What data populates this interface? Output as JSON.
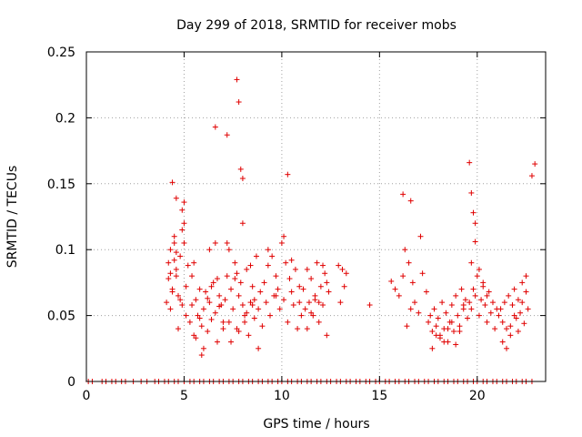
{
  "chart_data": {
    "type": "scatter",
    "title": "Day 299 of 2018, SRMTID for receiver mobs",
    "xlabel": "GPS time / hours",
    "ylabel": "SRMTID / TECUs",
    "xlim": [
      0,
      23.5
    ],
    "ylim": [
      0,
      0.25
    ],
    "xticks": [
      0,
      5,
      10,
      15,
      20
    ],
    "xtick_labels": [
      "0",
      "5",
      "10",
      "15",
      "20"
    ],
    "yticks": [
      0,
      0.05,
      0.1,
      0.15,
      0.2,
      0.25
    ],
    "ytick_labels": [
      "0",
      "0.05",
      "0.1",
      "0.15",
      "0.2",
      "0.25"
    ],
    "grid": true,
    "marker": "+",
    "series": [
      {
        "name": "SRMTID",
        "color": "#e00000",
        "x": [
          0.1,
          0.3,
          0.8,
          1.0,
          1.3,
          1.5,
          1.8,
          2.0,
          2.4,
          2.8,
          3.1,
          3.5,
          3.7,
          4.0,
          4.2,
          4.5,
          4.7,
          5.0,
          5.3,
          5.5,
          5.8,
          6.0,
          6.3,
          6.5,
          6.8,
          7.0,
          7.3,
          7.5,
          7.8,
          8.0,
          8.3,
          8.5,
          8.8,
          9.0,
          9.3,
          9.5,
          9.8,
          10.0,
          10.3,
          10.5,
          10.8,
          11.0,
          11.3,
          11.5,
          11.8,
          12.0,
          12.3,
          12.5,
          12.8,
          13.0,
          13.3,
          13.5,
          13.8,
          14.0,
          14.3,
          14.5,
          14.8,
          15.0,
          15.3,
          15.5,
          15.8,
          16.0,
          16.3,
          16.5,
          16.8,
          17.0,
          17.3,
          17.5,
          17.8,
          18.0,
          18.3,
          18.5,
          18.8,
          19.0,
          19.3,
          19.5,
          19.8,
          20.0,
          20.3,
          20.5,
          20.8,
          21.0,
          21.3,
          21.5,
          21.8,
          22.0,
          22.3,
          22.5,
          22.8,
          4.1,
          4.2,
          4.3,
          4.4,
          4.5,
          4.6,
          4.7,
          4.8,
          4.9,
          5.0,
          5.1,
          5.2,
          4.3,
          4.4,
          4.6,
          4.8,
          5.0,
          4.2,
          4.5,
          4.7,
          4.9,
          5.1,
          4.3,
          4.6,
          4.9,
          5.3,
          5.4,
          5.5,
          5.6,
          5.7,
          5.8,
          5.9,
          6.0,
          6.1,
          6.2,
          6.3,
          6.4,
          6.5,
          6.6,
          6.7,
          6.8,
          6.9,
          7.0,
          5.4,
          5.6,
          5.8,
          6.0,
          6.2,
          6.4,
          6.6,
          6.8,
          7.0,
          5.5,
          5.9,
          6.3,
          6.7,
          7.1,
          7.2,
          7.3,
          7.4,
          7.5,
          7.6,
          7.7,
          7.8,
          7.9,
          8.0,
          8.1,
          8.2,
          8.3,
          8.4,
          8.5,
          8.6,
          8.7,
          8.8,
          8.9,
          9.0,
          7.2,
          7.4,
          7.6,
          7.8,
          8.0,
          8.2,
          8.4,
          8.6,
          8.8,
          7.3,
          7.7,
          8.1,
          8.5,
          9.1,
          9.2,
          9.3,
          9.4,
          9.5,
          9.6,
          9.7,
          9.8,
          9.9,
          10.0,
          10.1,
          10.2,
          10.3,
          10.4,
          10.5,
          10.6,
          10.7,
          10.8,
          10.9,
          11.0,
          9.3,
          9.7,
          10.1,
          10.5,
          10.9,
          11.1,
          11.2,
          11.3,
          11.4,
          11.5,
          11.6,
          11.7,
          11.8,
          11.9,
          12.0,
          12.1,
          12.2,
          12.3,
          12.4,
          11.3,
          11.7,
          12.1,
          12.3,
          11.5,
          11.9,
          12.9,
          13.0,
          13.1,
          13.2,
          13.3,
          14.5,
          15.6,
          15.8,
          16.0,
          16.2,
          16.4,
          16.5,
          16.6,
          16.8,
          17.0,
          17.2,
          17.4,
          16.3,
          16.7,
          17.1,
          17.5,
          17.6,
          17.7,
          17.8,
          17.9,
          18.0,
          18.1,
          18.2,
          18.3,
          18.4,
          18.5,
          18.6,
          18.7,
          18.8,
          18.9,
          19.0,
          19.1,
          19.2,
          19.3,
          19.4,
          19.5,
          17.7,
          18.1,
          18.5,
          18.9,
          19.3,
          17.9,
          18.3,
          18.7,
          19.1,
          19.6,
          19.7,
          19.8,
          19.9,
          20.0,
          20.1,
          20.2,
          20.3,
          20.4,
          20.5,
          20.6,
          20.7,
          20.8,
          20.9,
          21.0,
          19.7,
          19.9,
          20.1,
          20.3,
          20.5,
          21.1,
          21.2,
          21.3,
          21.4,
          21.5,
          21.6,
          21.7,
          21.8,
          21.9,
          22.0,
          22.1,
          22.2,
          22.3,
          22.4,
          22.5,
          22.6,
          21.3,
          21.7,
          22.1,
          22.5,
          21.5,
          21.9,
          22.3,
          4.4,
          4.6,
          4.5,
          5.0,
          6.6,
          7.2,
          7.7,
          7.8,
          7.9,
          8.0,
          10.3,
          16.2,
          16.6,
          19.6,
          19.7,
          19.8,
          19.9,
          22.8,
          22.95
        ],
        "y": [
          0,
          0,
          0,
          0,
          0,
          0,
          0,
          0,
          0,
          0,
          0,
          0,
          0,
          0,
          0,
          0,
          0,
          0,
          0,
          0,
          0,
          0,
          0,
          0,
          0,
          0,
          0,
          0,
          0,
          0,
          0,
          0,
          0,
          0,
          0,
          0,
          0,
          0,
          0,
          0,
          0,
          0,
          0,
          0,
          0,
          0,
          0,
          0,
          0,
          0,
          0,
          0,
          0,
          0,
          0,
          0,
          0,
          0,
          0,
          0,
          0,
          0,
          0,
          0,
          0,
          0,
          0,
          0,
          0,
          0,
          0,
          0,
          0,
          0,
          0,
          0,
          0,
          0,
          0,
          0,
          0,
          0,
          0,
          0,
          0,
          0,
          0,
          0,
          0,
          0.06,
          0.09,
          0.1,
          0.07,
          0.11,
          0.08,
          0.065,
          0.095,
          0.058,
          0.105,
          0.072,
          0.088,
          0.055,
          0.068,
          0.085,
          0.062,
          0.12,
          0.078,
          0.092,
          0.04,
          0.115,
          0.05,
          0.082,
          0.098,
          0.13,
          0.045,
          0.058,
          0.035,
          0.062,
          0.05,
          0.07,
          0.042,
          0.055,
          0.068,
          0.038,
          0.06,
          0.047,
          0.075,
          0.052,
          0.03,
          0.065,
          0.058,
          0.04,
          0.08,
          0.033,
          0.048,
          0.025,
          0.063,
          0.072,
          0.105,
          0.057,
          0.045,
          0.09,
          0.02,
          0.1,
          0.078,
          0.062,
          0.08,
          0.045,
          0.07,
          0.055,
          0.09,
          0.04,
          0.065,
          0.075,
          0.058,
          0.05,
          0.085,
          0.035,
          0.06,
          0.072,
          0.048,
          0.095,
          0.055,
          0.068,
          0.042,
          0.105,
          0.03,
          0.078,
          0.038,
          0.12,
          0.052,
          0.088,
          0.062,
          0.025,
          0.1,
          0.082,
          0.045,
          0.058,
          0.075,
          0.06,
          0.088,
          0.05,
          0.095,
          0.065,
          0.08,
          0.07,
          0.055,
          0.105,
          0.062,
          0.09,
          0.045,
          0.078,
          0.068,
          0.058,
          0.085,
          0.04,
          0.072,
          0.05,
          0.1,
          0.065,
          0.11,
          0.092,
          0.06,
          0.07,
          0.055,
          0.085,
          0.06,
          0.078,
          0.05,
          0.065,
          0.09,
          0.045,
          0.072,
          0.058,
          0.082,
          0.035,
          0.068,
          0.04,
          0.062,
          0.088,
          0.075,
          0.052,
          0.06,
          0.088,
          0.06,
          0.085,
          0.072,
          0.082,
          0.058,
          0.076,
          0.07,
          0.065,
          0.08,
          0.042,
          0.09,
          0.055,
          0.06,
          0.052,
          0.082,
          0.068,
          0.1,
          0.075,
          0.11,
          0.045,
          0.05,
          0.038,
          0.055,
          0.042,
          0.048,
          0.035,
          0.06,
          0.04,
          0.052,
          0.03,
          0.045,
          0.058,
          0.038,
          0.065,
          0.05,
          0.042,
          0.07,
          0.055,
          0.062,
          0.048,
          0.025,
          0.033,
          0.04,
          0.028,
          0.058,
          0.035,
          0.03,
          0.045,
          0.038,
          0.06,
          0.055,
          0.07,
          0.065,
          0.08,
          0.05,
          0.062,
          0.075,
          0.058,
          0.045,
          0.068,
          0.052,
          0.06,
          0.04,
          0.055,
          0.09,
          0.12,
          0.085,
          0.072,
          0.065,
          0.05,
          0.055,
          0.045,
          0.06,
          0.04,
          0.065,
          0.035,
          0.058,
          0.07,
          0.048,
          0.062,
          0.052,
          0.075,
          0.044,
          0.068,
          0.055,
          0.03,
          0.042,
          0.038,
          0.08,
          0.025,
          0.05,
          0.06,
          0.151,
          0.139,
          0.105,
          0.136,
          0.193,
          0.187,
          0.229,
          0.212,
          0.161,
          0.154,
          0.157,
          0.142,
          0.137,
          0.166,
          0.143,
          0.128,
          0.106,
          0.156,
          0.165
        ]
      }
    ]
  }
}
